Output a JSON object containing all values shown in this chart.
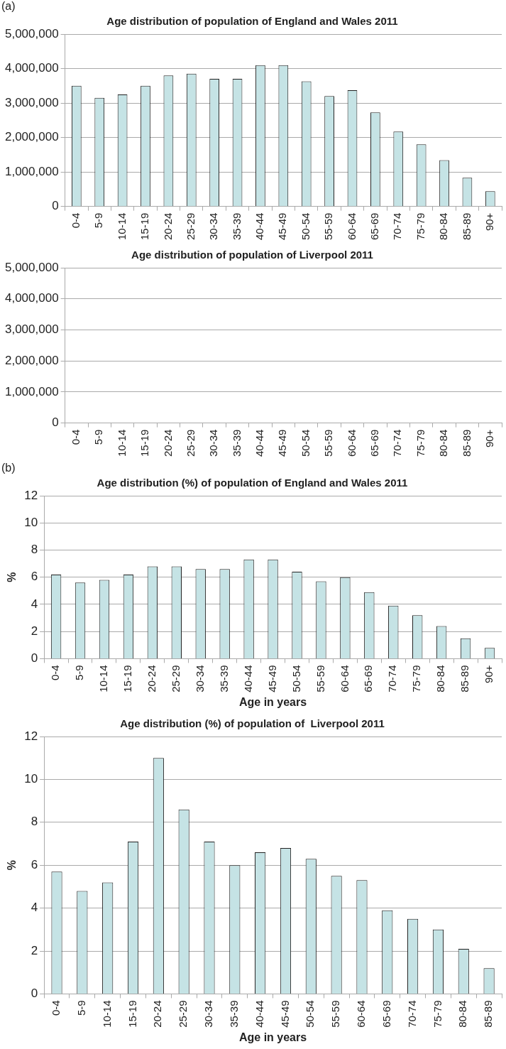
{
  "chart_data": [
    {
      "type": "bar",
      "title": "Age distribution of population of England and Wales 2011",
      "annotations": [
        "(a)"
      ],
      "categories": [
        "0-4",
        "5-9",
        "10-14",
        "15-19",
        "20-24",
        "25-29",
        "30-34",
        "35-39",
        "40-44",
        "45-49",
        "50-54",
        "55-59",
        "60-64",
        "65-69",
        "70-74",
        "75-79",
        "80-84",
        "85-89",
        "90+"
      ],
      "values": [
        3500000,
        3150000,
        3250000,
        3500000,
        3800000,
        3850000,
        3700000,
        3700000,
        4100000,
        4100000,
        3630000,
        3200000,
        3370000,
        2730000,
        2170000,
        1800000,
        1340000,
        830000,
        440000
      ],
      "color": "#c5e3e5",
      "ylim": [
        0,
        5000000
      ],
      "yticks": [
        0,
        {
          "value": 1000000,
          "label": "1,000,000"
        },
        {
          "value": 2000000,
          "label": "2,000,000"
        },
        {
          "value": 3000000,
          "label": "3,000,000"
        },
        {
          "value": 4000000,
          "label": "4,000,000"
        },
        {
          "value": 5000000,
          "label": "5,000,000"
        }
      ],
      "grid": "y",
      "legend": false
    },
    {
      "type": "bar",
      "title": "Age distribution of population of Liverpool 2011",
      "categories": [
        "0-4",
        "5-9",
        "10-14",
        "15-19",
        "20-24",
        "25-29",
        "30-34",
        "35-39",
        "40-44",
        "45-49",
        "50-54",
        "55-59",
        "60-64",
        "65-69",
        "70-74",
        "75-79",
        "80-84",
        "85-89",
        "90+"
      ],
      "values": [
        null,
        null,
        null,
        null,
        null,
        null,
        null,
        null,
        null,
        null,
        null,
        null,
        null,
        null,
        null,
        null,
        null,
        null,
        null
      ],
      "color": "#c5e3e5",
      "ylim": [
        0,
        5000000
      ],
      "yticks": [
        0,
        {
          "value": 1000000,
          "label": "1,000,000"
        },
        {
          "value": 2000000,
          "label": "2,000,000"
        },
        {
          "value": 3000000,
          "label": "3,000,000"
        },
        {
          "value": 4000000,
          "label": "4,000,000"
        },
        {
          "value": 5000000,
          "label": "5,000,000"
        }
      ],
      "grid": "y",
      "legend": false
    },
    {
      "type": "bar",
      "title": "Age distribution (%) of population of England and Wales 2011",
      "annotations": [
        "(b)"
      ],
      "xlabel": "Age in years",
      "ylabel": "%",
      "categories": [
        "0-4",
        "5-9",
        "10-14",
        "15-19",
        "20-24",
        "25-29",
        "30-34",
        "35-39",
        "40-44",
        "45-49",
        "50-54",
        "55-59",
        "60-64",
        "65-69",
        "70-74",
        "75-79",
        "80-84",
        "85-89",
        "90+"
      ],
      "values": [
        6.2,
        5.6,
        5.8,
        6.2,
        6.8,
        6.8,
        6.6,
        6.6,
        7.3,
        7.3,
        6.4,
        5.7,
        6.0,
        4.9,
        3.9,
        3.2,
        2.4,
        1.5,
        0.8
      ],
      "color": "#c5e3e5",
      "ylim": [
        0,
        12
      ],
      "yticks": [
        0,
        2,
        4,
        6,
        8,
        10,
        12
      ],
      "grid": "y",
      "legend": false
    },
    {
      "type": "bar",
      "title": "Age distribution (%) of population of  Liverpool 2011",
      "xlabel": "Age in years",
      "ylabel": "%",
      "categories": [
        "0-4",
        "5-9",
        "10-14",
        "15-19",
        "20-24",
        "25-29",
        "30-34",
        "35-39",
        "40-44",
        "45-49",
        "50-54",
        "55-59",
        "60-64",
        "65-69",
        "70-74",
        "75-79",
        "80-84",
        "85-89"
      ],
      "values": [
        5.7,
        4.8,
        5.2,
        7.1,
        11.0,
        8.6,
        7.1,
        6.0,
        6.6,
        6.8,
        6.3,
        5.5,
        5.3,
        3.9,
        3.5,
        3.0,
        2.1,
        1.2
      ],
      "color": "#c5e3e5",
      "ylim": [
        0,
        12
      ],
      "yticks": [
        0,
        2,
        4,
        6,
        8,
        10,
        12
      ],
      "grid": "y",
      "legend": false
    }
  ]
}
